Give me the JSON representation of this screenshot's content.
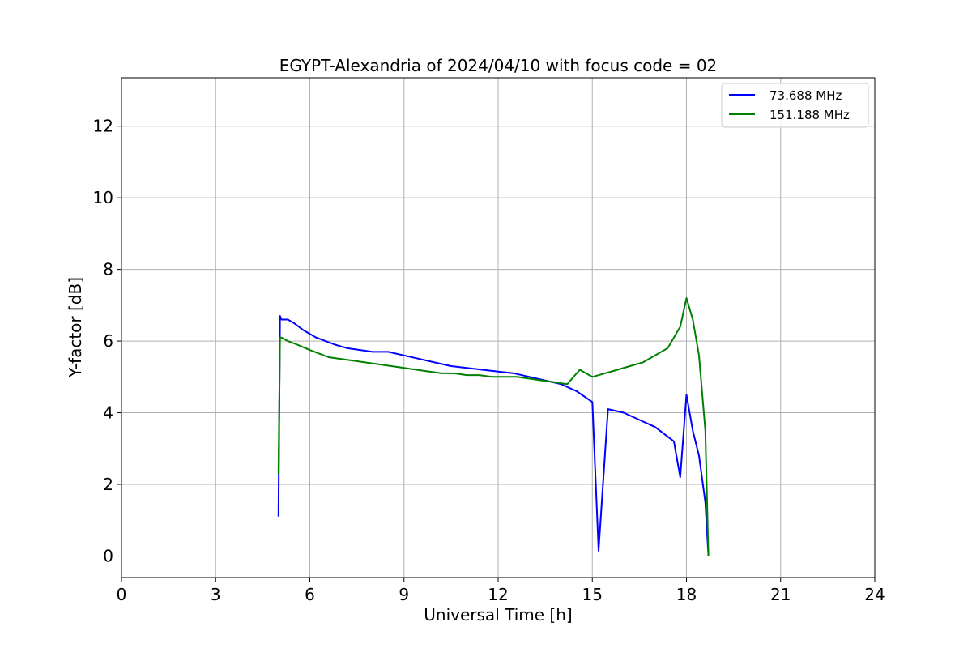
{
  "chart_data": {
    "type": "line",
    "title": "EGYPT-Alexandria of 2024/04/10 with focus code = 02",
    "xlabel": "Universal Time [h]",
    "ylabel": "Y-factor [dB]",
    "xlim": [
      0,
      24
    ],
    "ylim": [
      -0.6,
      13.35
    ],
    "xticks": [
      0,
      3,
      6,
      9,
      12,
      15,
      18,
      21,
      24
    ],
    "yticks": [
      0,
      2,
      4,
      6,
      8,
      10,
      12
    ],
    "grid": true,
    "legend_position": "top-right",
    "series": [
      {
        "name": "73.688 MHz",
        "color": "#0000ff",
        "x": [
          5.0,
          5.05,
          5.1,
          5.3,
          5.5,
          5.8,
          6.2,
          6.5,
          6.8,
          7.2,
          7.6,
          8.0,
          8.5,
          9.0,
          9.5,
          10.0,
          10.5,
          11.0,
          11.5,
          12.0,
          12.5,
          13.0,
          13.5,
          14.0,
          14.5,
          15.0,
          15.2,
          15.5,
          16.0,
          16.5,
          17.0,
          17.3,
          17.6,
          17.8,
          18.0,
          18.2,
          18.4,
          18.6,
          18.7
        ],
        "y": [
          1.1,
          6.7,
          6.6,
          6.6,
          6.5,
          6.3,
          6.1,
          6.0,
          5.9,
          5.8,
          5.75,
          5.7,
          5.7,
          5.6,
          5.5,
          5.4,
          5.3,
          5.25,
          5.2,
          5.15,
          5.1,
          5.0,
          4.9,
          4.8,
          4.6,
          4.3,
          0.15,
          4.1,
          4.0,
          3.8,
          3.6,
          3.4,
          3.2,
          2.2,
          4.5,
          3.5,
          2.8,
          1.5,
          0.0
        ]
      },
      {
        "name": "151.188 MHz",
        "color": "#008000",
        "x": [
          5.0,
          5.05,
          5.1,
          5.3,
          5.6,
          6.0,
          6.3,
          6.6,
          7.0,
          7.4,
          7.8,
          8.2,
          8.6,
          9.0,
          9.4,
          9.8,
          10.2,
          10.6,
          11.0,
          11.4,
          11.8,
          12.2,
          12.6,
          13.0,
          13.4,
          13.8,
          14.2,
          14.6,
          15.0,
          15.4,
          15.8,
          16.2,
          16.6,
          17.0,
          17.4,
          17.8,
          18.0,
          18.2,
          18.4,
          18.6,
          18.7
        ],
        "y": [
          2.3,
          6.1,
          6.1,
          6.0,
          5.9,
          5.75,
          5.65,
          5.55,
          5.5,
          5.45,
          5.4,
          5.35,
          5.3,
          5.25,
          5.2,
          5.15,
          5.1,
          5.1,
          5.05,
          5.05,
          5.0,
          5.0,
          5.0,
          4.95,
          4.9,
          4.85,
          4.8,
          5.2,
          5.0,
          5.1,
          5.2,
          5.3,
          5.4,
          5.6,
          5.8,
          6.4,
          7.2,
          6.6,
          5.6,
          3.5,
          0.0
        ]
      }
    ]
  }
}
